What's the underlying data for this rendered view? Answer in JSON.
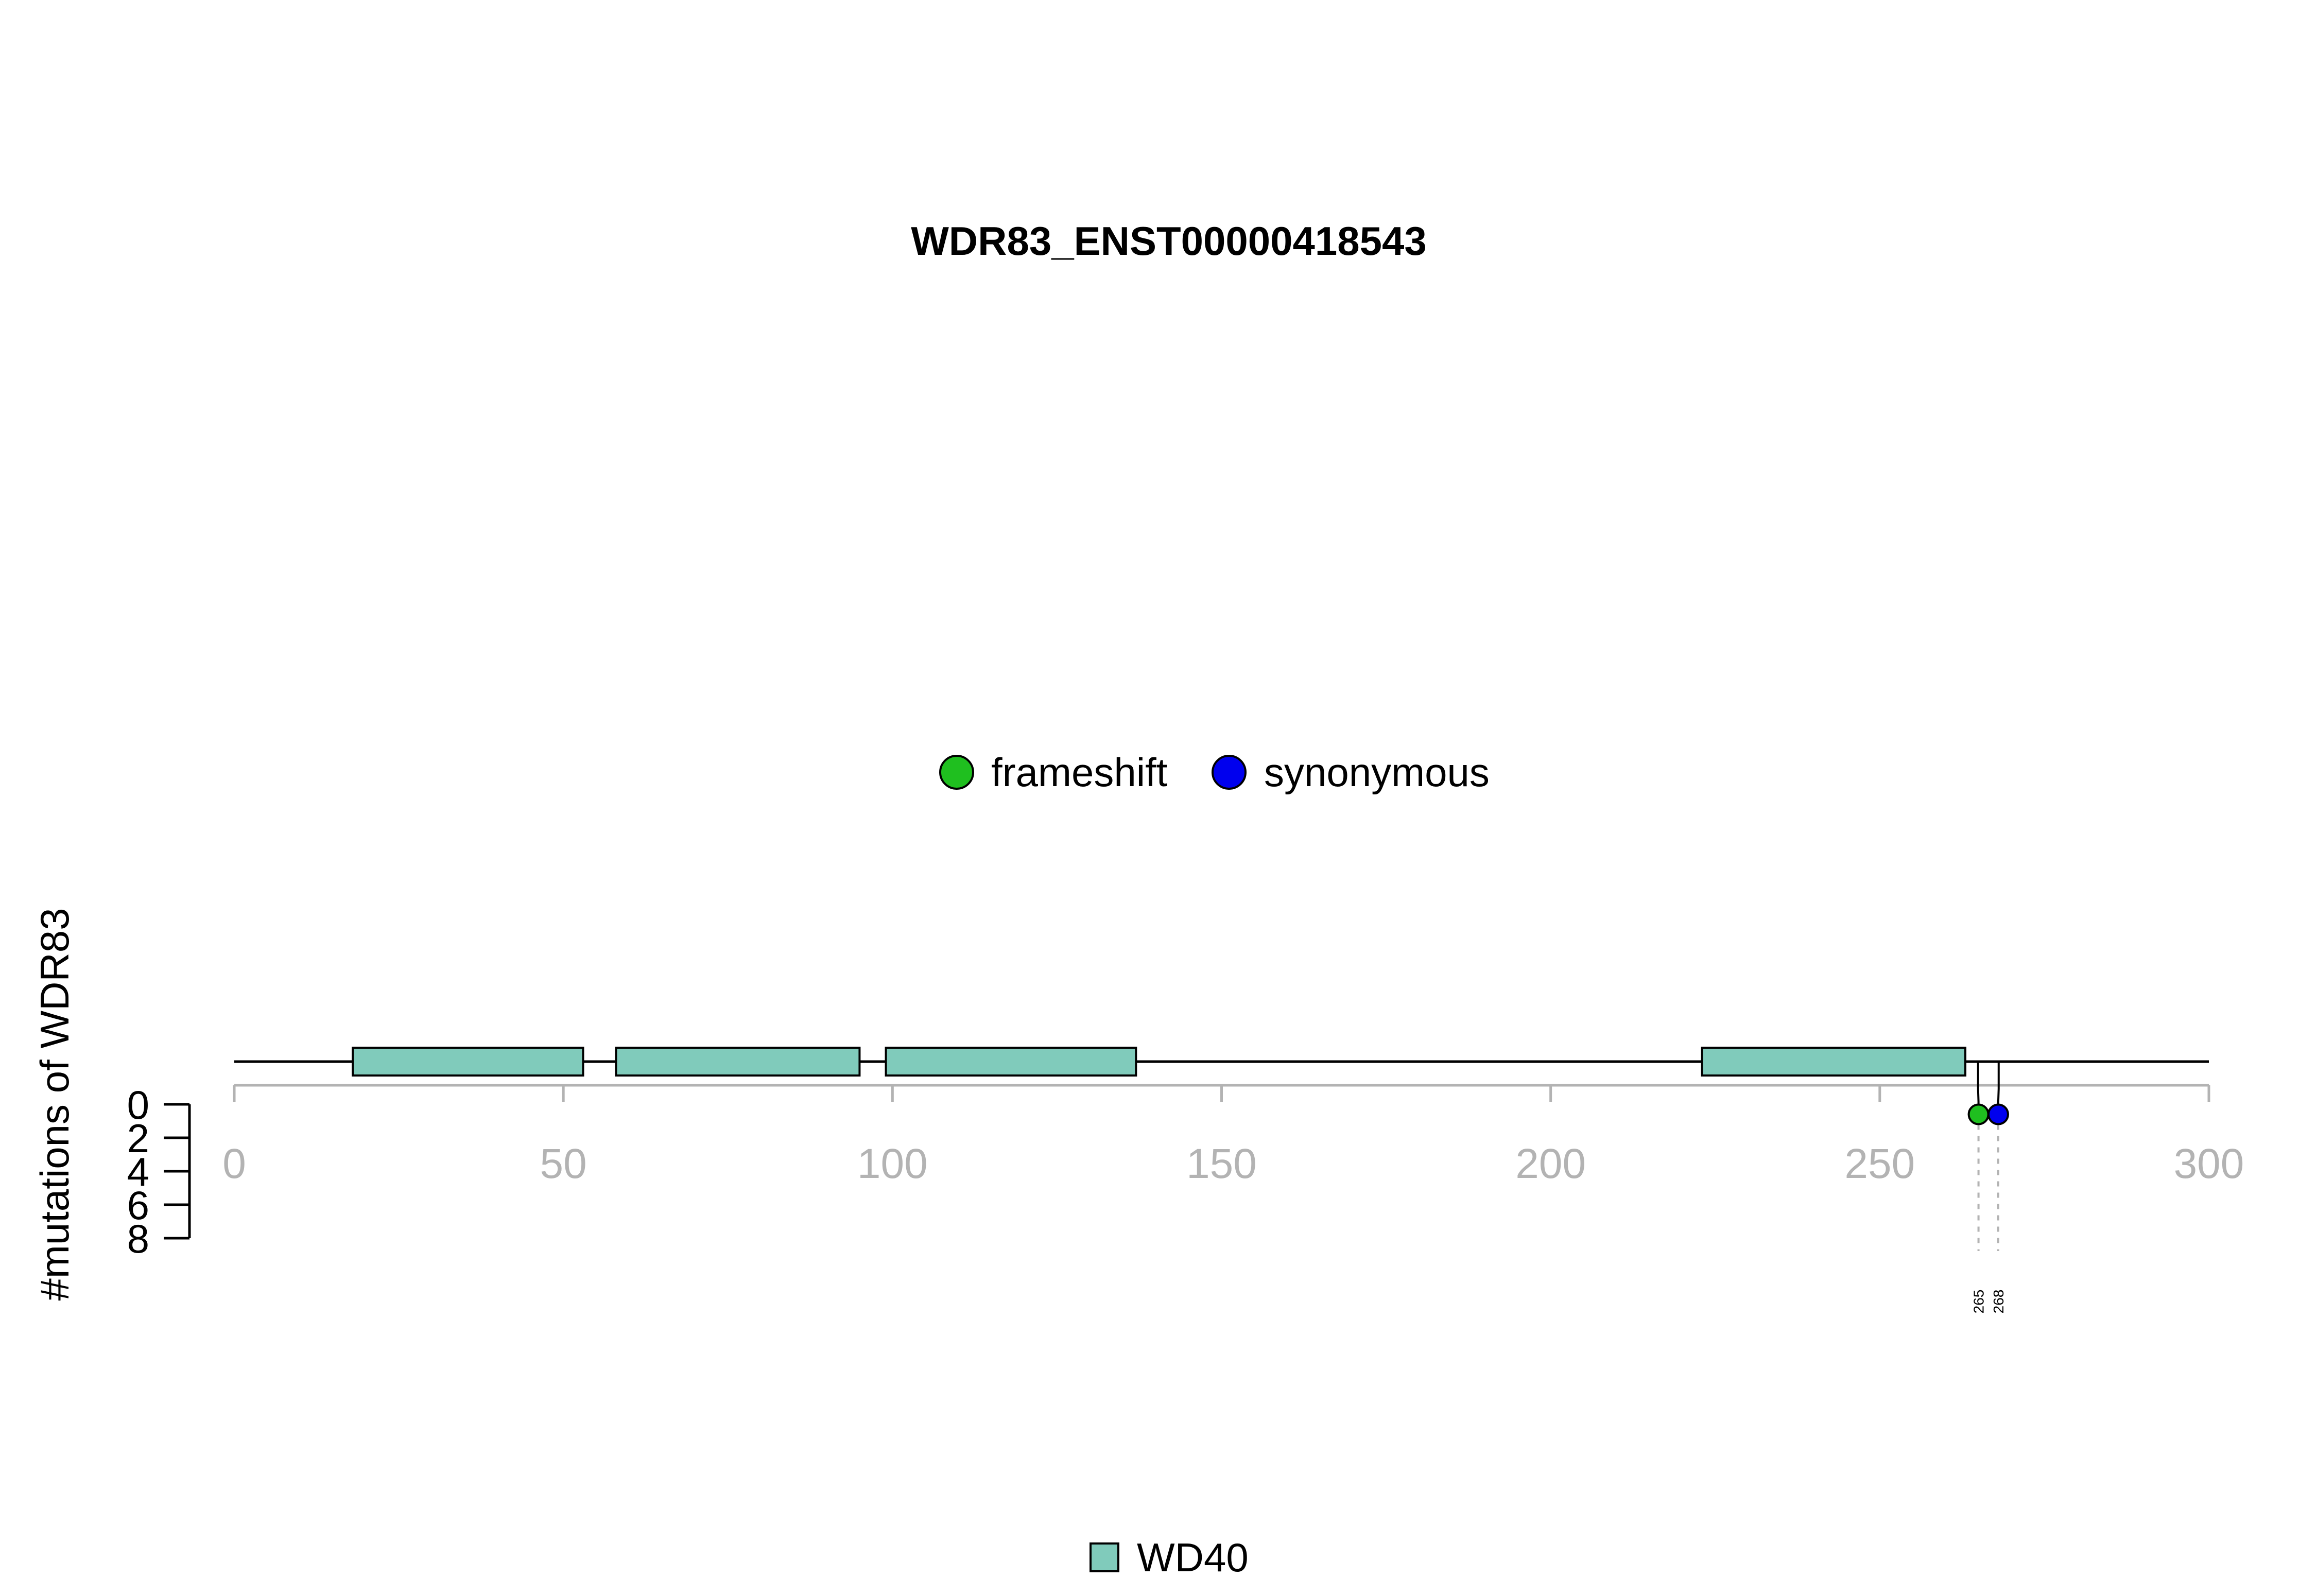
{
  "chart_data": {
    "type": "lollipop",
    "title": "WDR83_ENST00000418543",
    "ylabel": "#mutations of WDR83",
    "xlim": [
      0,
      300
    ],
    "x_ticks": [
      0,
      50,
      100,
      150,
      200,
      250,
      300
    ],
    "y_ticks": [
      0,
      2,
      4,
      6,
      8
    ],
    "ylim": [
      0,
      8
    ],
    "mutation_legend": [
      {
        "label": "frameshift",
        "color": "#1fbf1f"
      },
      {
        "label": "synonymous",
        "color": "#0000ee"
      }
    ],
    "domain_legend": [
      {
        "label": "WD40",
        "color": "#80cbbb"
      }
    ],
    "domains": [
      {
        "name": "WD40",
        "start": 18,
        "end": 53
      },
      {
        "name": "WD40",
        "start": 58,
        "end": 95
      },
      {
        "name": "WD40",
        "start": 99,
        "end": 137
      },
      {
        "name": "WD40",
        "start": 223,
        "end": 263
      }
    ],
    "mutations": [
      {
        "position": 265,
        "label": "265",
        "type": "frameshift",
        "count": 1
      },
      {
        "position": 268,
        "label": "268",
        "type": "synonymous",
        "count": 1
      }
    ]
  }
}
